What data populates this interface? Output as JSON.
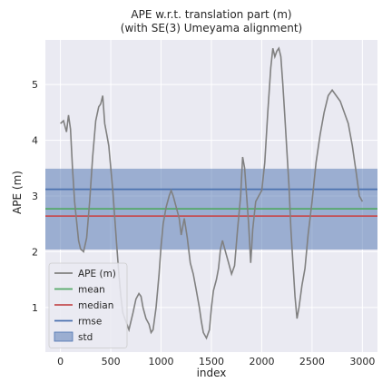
{
  "chart_data": {
    "type": "line",
    "title": "APE w.r.t. translation part (m)",
    "subtitle": "(with SE(3) Umeyama alignment)",
    "xlabel": "index",
    "ylabel": "APE (m)",
    "xlim": [
      -150,
      3150
    ],
    "ylim": [
      0.2,
      5.8
    ],
    "xticks": [
      0,
      500,
      1000,
      1500,
      2000,
      2500,
      3000
    ],
    "yticks": [
      1,
      2,
      3,
      4,
      5
    ],
    "grid": true,
    "legend_position": "lower-left",
    "colors": {
      "background": "#eaeaf2",
      "ape": "#808080",
      "mean": "#55a868",
      "median": "#c44e52",
      "rmse": "#4c72b0",
      "std": "#4c72b0"
    },
    "series": [
      {
        "name": "APE (m)",
        "x": [
          0,
          30,
          60,
          80,
          100,
          120,
          140,
          160,
          180,
          200,
          230,
          260,
          290,
          320,
          350,
          380,
          400,
          420,
          440,
          460,
          480,
          500,
          520,
          540,
          560,
          580,
          600,
          620,
          650,
          680,
          700,
          720,
          750,
          780,
          800,
          820,
          850,
          880,
          900,
          920,
          950,
          980,
          1000,
          1020,
          1050,
          1080,
          1100,
          1120,
          1150,
          1180,
          1200,
          1230,
          1260,
          1290,
          1320,
          1350,
          1380,
          1400,
          1420,
          1450,
          1480,
          1500,
          1520,
          1550,
          1570,
          1590,
          1610,
          1640,
          1670,
          1700,
          1730,
          1760,
          1790,
          1810,
          1830,
          1850,
          1870,
          1890,
          1910,
          1940,
          1970,
          2000,
          2030,
          2060,
          2090,
          2110,
          2130,
          2150,
          2170,
          2190,
          2210,
          2230,
          2250,
          2270,
          2290,
          2310,
          2330,
          2350,
          2370,
          2400,
          2430,
          2460,
          2500,
          2540,
          2580,
          2620,
          2660,
          2700,
          2740,
          2780,
          2820,
          2860,
          2900,
          2940,
          2970,
          3000
        ],
        "y": [
          4.3,
          4.35,
          4.15,
          4.45,
          4.2,
          3.5,
          2.9,
          2.55,
          2.2,
          2.05,
          2.0,
          2.25,
          2.9,
          3.7,
          4.35,
          4.6,
          4.65,
          4.8,
          4.3,
          4.1,
          3.9,
          3.5,
          3.1,
          2.6,
          2.1,
          1.6,
          1.2,
          0.9,
          0.75,
          0.6,
          0.75,
          0.9,
          1.15,
          1.25,
          1.2,
          1.0,
          0.8,
          0.7,
          0.55,
          0.6,
          1.0,
          1.6,
          2.1,
          2.5,
          2.8,
          3.0,
          3.1,
          3.0,
          2.8,
          2.6,
          2.3,
          2.6,
          2.25,
          1.8,
          1.6,
          1.3,
          1.0,
          0.75,
          0.55,
          0.45,
          0.6,
          1.0,
          1.3,
          1.5,
          1.7,
          2.05,
          2.2,
          2.0,
          1.8,
          1.6,
          1.75,
          2.4,
          3.0,
          3.7,
          3.5,
          3.0,
          2.5,
          1.8,
          2.4,
          2.9,
          3.0,
          3.1,
          3.6,
          4.5,
          5.3,
          5.65,
          5.5,
          5.6,
          5.65,
          5.5,
          5.0,
          4.4,
          3.8,
          3.2,
          2.4,
          1.8,
          1.2,
          0.8,
          1.0,
          1.4,
          1.7,
          2.3,
          2.9,
          3.6,
          4.1,
          4.5,
          4.8,
          4.9,
          4.8,
          4.7,
          4.5,
          4.3,
          3.9,
          3.4,
          3.0,
          2.9
        ]
      }
    ],
    "lines": [
      {
        "name": "mean",
        "y": 2.77
      },
      {
        "name": "median",
        "y": 2.64
      },
      {
        "name": "rmse",
        "y": 3.12
      }
    ],
    "std": {
      "name": "std",
      "lower": 2.04,
      "upper": 3.49
    }
  }
}
